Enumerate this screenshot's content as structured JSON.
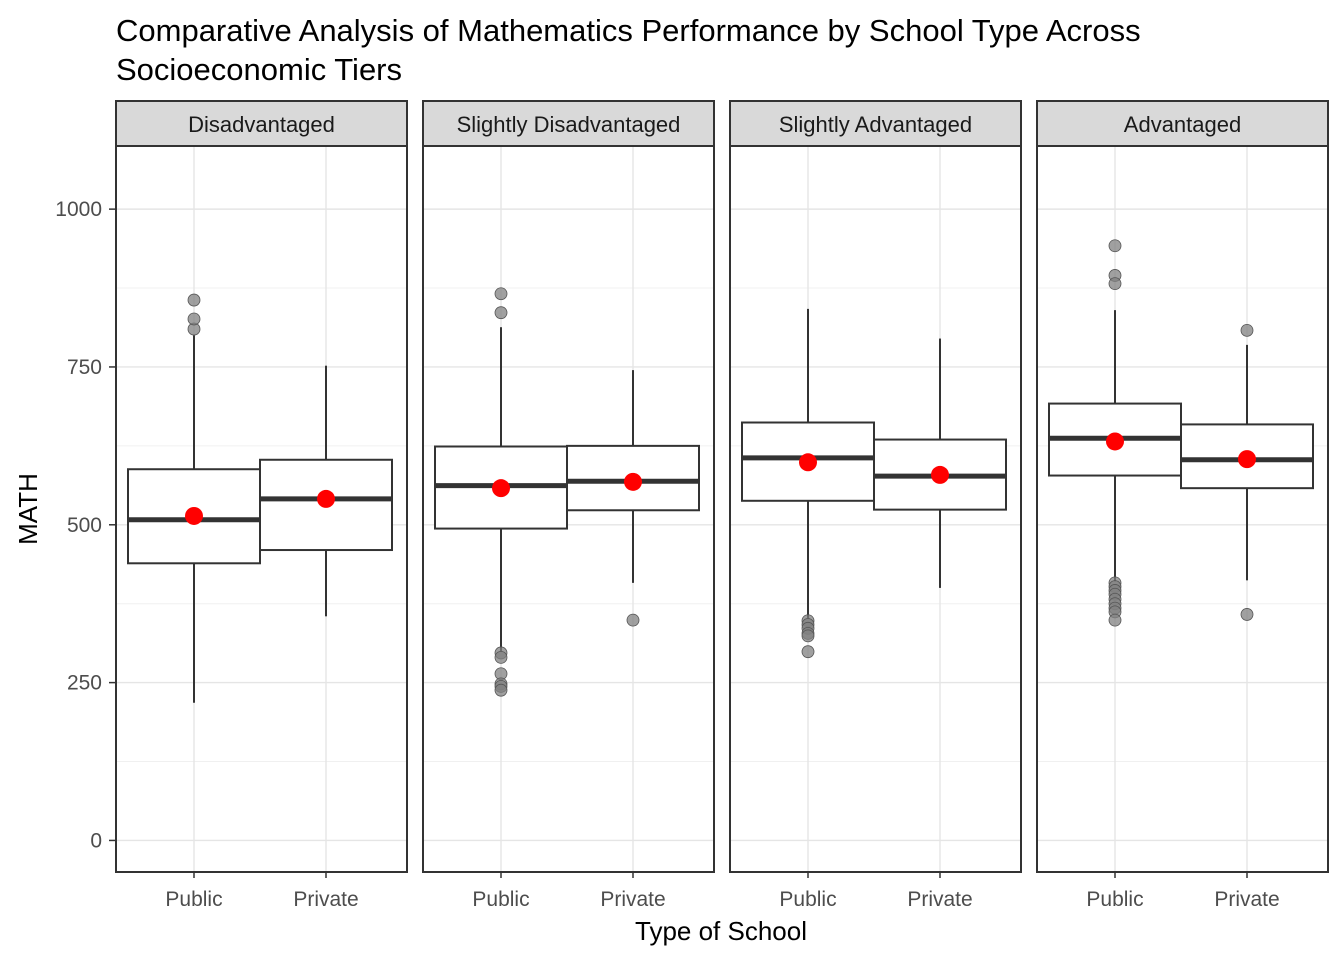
{
  "chart_data": {
    "type": "box",
    "title": "Comparative Analysis of Mathematics Performance by School Type Across Socioeconomic Tiers",
    "title_lines": [
      "Comparative Analysis of Mathematics Performance by School Type Across",
      "Socioeconomic Tiers"
    ],
    "xlabel": "Type of School",
    "ylabel": "MATH",
    "ylim": [
      -50,
      1100
    ],
    "yticks": [
      0,
      250,
      500,
      750,
      1000
    ],
    "categories": [
      "Public",
      "Private"
    ],
    "grid": true,
    "mean_marker_color": "#ff0000",
    "outlier_color": "#808080",
    "facets": [
      {
        "label": "Disadvantaged",
        "boxes": [
          {
            "category": "Public",
            "min": 218,
            "q1": 439,
            "median": 508,
            "q3": 588,
            "max": 800,
            "mean": 514,
            "outliers": [
              810,
              826,
              856
            ]
          },
          {
            "category": "Private",
            "min": 355,
            "q1": 460,
            "median": 541,
            "q3": 603,
            "max": 752,
            "mean": 541,
            "outliers": []
          }
        ]
      },
      {
        "label": "Slightly Disadvantaged",
        "boxes": [
          {
            "category": "Public",
            "min": 300,
            "q1": 494,
            "median": 562,
            "q3": 624,
            "max": 813,
            "mean": 558,
            "outliers": [
              836,
              866,
              297,
              290,
              264,
              248,
              244,
              238
            ]
          },
          {
            "category": "Private",
            "min": 408,
            "q1": 523,
            "median": 569,
            "q3": 625,
            "max": 745,
            "mean": 568,
            "outliers": [
              349
            ]
          }
        ]
      },
      {
        "label": "Slightly Advantaged",
        "boxes": [
          {
            "category": "Public",
            "min": 352,
            "q1": 538,
            "median": 606,
            "q3": 662,
            "max": 842,
            "mean": 599,
            "outliers": [
              348,
              342,
              336,
              328,
              324,
              299
            ]
          },
          {
            "category": "Private",
            "min": 400,
            "q1": 524,
            "median": 577,
            "q3": 635,
            "max": 795,
            "mean": 579,
            "outliers": []
          }
        ]
      },
      {
        "label": "Advantaged",
        "boxes": [
          {
            "category": "Public",
            "min": 410,
            "q1": 578,
            "median": 637,
            "q3": 692,
            "max": 840,
            "mean": 632,
            "outliers": [
              942,
              895,
              882,
              408,
              402,
              396,
              390,
              382,
              375,
              368,
              362,
              349
            ]
          },
          {
            "category": "Private",
            "min": 412,
            "q1": 558,
            "median": 603,
            "q3": 659,
            "max": 785,
            "mean": 604,
            "outliers": [
              808,
              358
            ]
          }
        ]
      }
    ]
  }
}
